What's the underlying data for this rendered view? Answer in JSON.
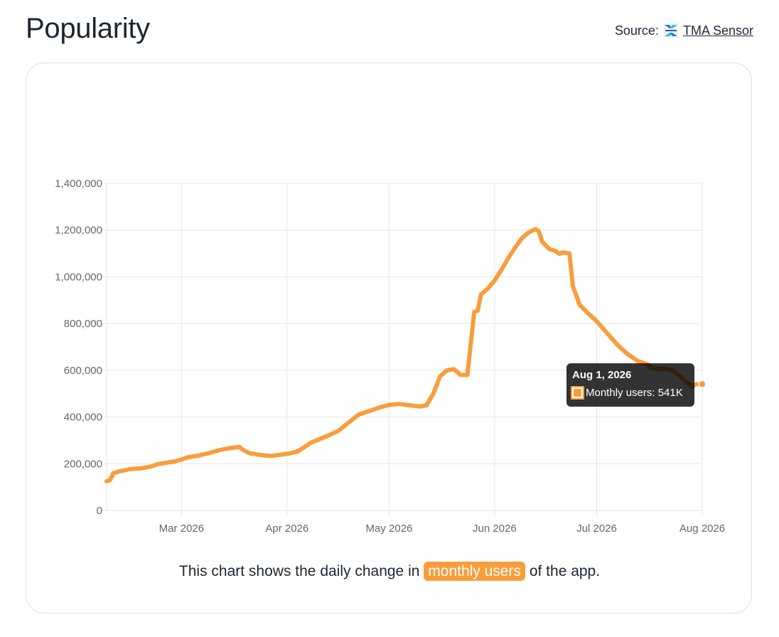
{
  "header": {
    "title": "Popularity",
    "source_prefix": "Source:",
    "source_link": "TMA Sensor"
  },
  "caption": {
    "before": "This chart shows the daily change in",
    "highlight": "monthly users",
    "after": "of the app."
  },
  "tooltip": {
    "title": "Aug 1, 2026",
    "label": "Monthly users: 541K"
  },
  "colors": {
    "line": "#f99d3c",
    "grid": "#e5e5e5",
    "tick_text": "#666666"
  },
  "chart_data": {
    "type": "line",
    "title": "",
    "xlabel": "",
    "ylabel": "",
    "ylim": [
      0,
      1400000
    ],
    "xlim": [
      "2026-02-07",
      "2026-08-01"
    ],
    "y_ticks": [
      "0",
      "200,000",
      "400,000",
      "600,000",
      "800,000",
      "1,000,000",
      "1,200,000",
      "1,400,000"
    ],
    "x_ticks": [
      {
        "date": "2026-03-01",
        "label": "Mar 2026"
      },
      {
        "date": "2026-04-01",
        "label": "Apr 2026"
      },
      {
        "date": "2026-05-01",
        "label": "May 2026"
      },
      {
        "date": "2026-06-01",
        "label": "Jun 2026"
      },
      {
        "date": "2026-07-01",
        "label": "Jul 2026"
      },
      {
        "date": "2026-08-01",
        "label": "Aug 2026"
      }
    ],
    "grid": true,
    "series": [
      {
        "name": "Monthly users",
        "points": [
          [
            "2026-02-07",
            125000
          ],
          [
            "2026-02-08",
            130000
          ],
          [
            "2026-02-09",
            160000
          ],
          [
            "2026-02-11",
            168000
          ],
          [
            "2026-02-14",
            177000
          ],
          [
            "2026-02-17",
            180000
          ],
          [
            "2026-02-20",
            188000
          ],
          [
            "2026-02-22",
            198000
          ],
          [
            "2026-02-25",
            205000
          ],
          [
            "2026-02-27",
            210000
          ],
          [
            "2026-03-01",
            218000
          ],
          [
            "2026-03-03",
            228000
          ],
          [
            "2026-03-06",
            235000
          ],
          [
            "2026-03-09",
            245000
          ],
          [
            "2026-03-12",
            258000
          ],
          [
            "2026-03-15",
            266000
          ],
          [
            "2026-03-18",
            272000
          ],
          [
            "2026-03-19",
            260000
          ],
          [
            "2026-03-21",
            245000
          ],
          [
            "2026-03-24",
            238000
          ],
          [
            "2026-03-27",
            233000
          ],
          [
            "2026-03-30",
            238000
          ],
          [
            "2026-04-02",
            245000
          ],
          [
            "2026-04-04",
            252000
          ],
          [
            "2026-04-06",
            270000
          ],
          [
            "2026-04-08",
            290000
          ],
          [
            "2026-04-10",
            302000
          ],
          [
            "2026-04-13",
            320000
          ],
          [
            "2026-04-16",
            340000
          ],
          [
            "2026-04-19",
            375000
          ],
          [
            "2026-04-22",
            410000
          ],
          [
            "2026-04-25",
            425000
          ],
          [
            "2026-04-28",
            440000
          ],
          [
            "2026-05-01",
            452000
          ],
          [
            "2026-05-04",
            456000
          ],
          [
            "2026-05-07",
            450000
          ],
          [
            "2026-05-10",
            445000
          ],
          [
            "2026-05-12",
            450000
          ],
          [
            "2026-05-14",
            500000
          ],
          [
            "2026-05-16",
            575000
          ],
          [
            "2026-05-18",
            600000
          ],
          [
            "2026-05-20",
            605000
          ],
          [
            "2026-05-22",
            580000
          ],
          [
            "2026-05-24",
            580000
          ],
          [
            "2026-05-26",
            850000
          ],
          [
            "2026-05-27",
            855000
          ],
          [
            "2026-05-28",
            925000
          ],
          [
            "2026-05-30",
            950000
          ],
          [
            "2026-06-01",
            985000
          ],
          [
            "2026-06-03",
            1030000
          ],
          [
            "2026-06-05",
            1080000
          ],
          [
            "2026-06-07",
            1125000
          ],
          [
            "2026-06-09",
            1165000
          ],
          [
            "2026-06-11",
            1190000
          ],
          [
            "2026-06-13",
            1205000
          ],
          [
            "2026-06-14",
            1195000
          ],
          [
            "2026-06-15",
            1150000
          ],
          [
            "2026-06-17",
            1120000
          ],
          [
            "2026-06-19",
            1110000
          ],
          [
            "2026-06-20",
            1098000
          ],
          [
            "2026-06-21",
            1105000
          ],
          [
            "2026-06-23",
            1100000
          ],
          [
            "2026-06-24",
            960000
          ],
          [
            "2026-06-26",
            880000
          ],
          [
            "2026-06-28",
            850000
          ],
          [
            "2026-07-01",
            810000
          ],
          [
            "2026-07-04",
            760000
          ],
          [
            "2026-07-07",
            710000
          ],
          [
            "2026-07-10",
            670000
          ],
          [
            "2026-07-13",
            640000
          ],
          [
            "2026-07-16",
            625000
          ],
          [
            "2026-07-17",
            610000
          ],
          [
            "2026-07-19",
            605000
          ],
          [
            "2026-07-21",
            608000
          ],
          [
            "2026-07-23",
            600000
          ],
          [
            "2026-07-25",
            580000
          ],
          [
            "2026-07-27",
            555000
          ],
          [
            "2026-07-29",
            530000
          ],
          [
            "2026-07-30",
            540000
          ],
          [
            "2026-08-01",
            541000
          ]
        ]
      }
    ]
  }
}
